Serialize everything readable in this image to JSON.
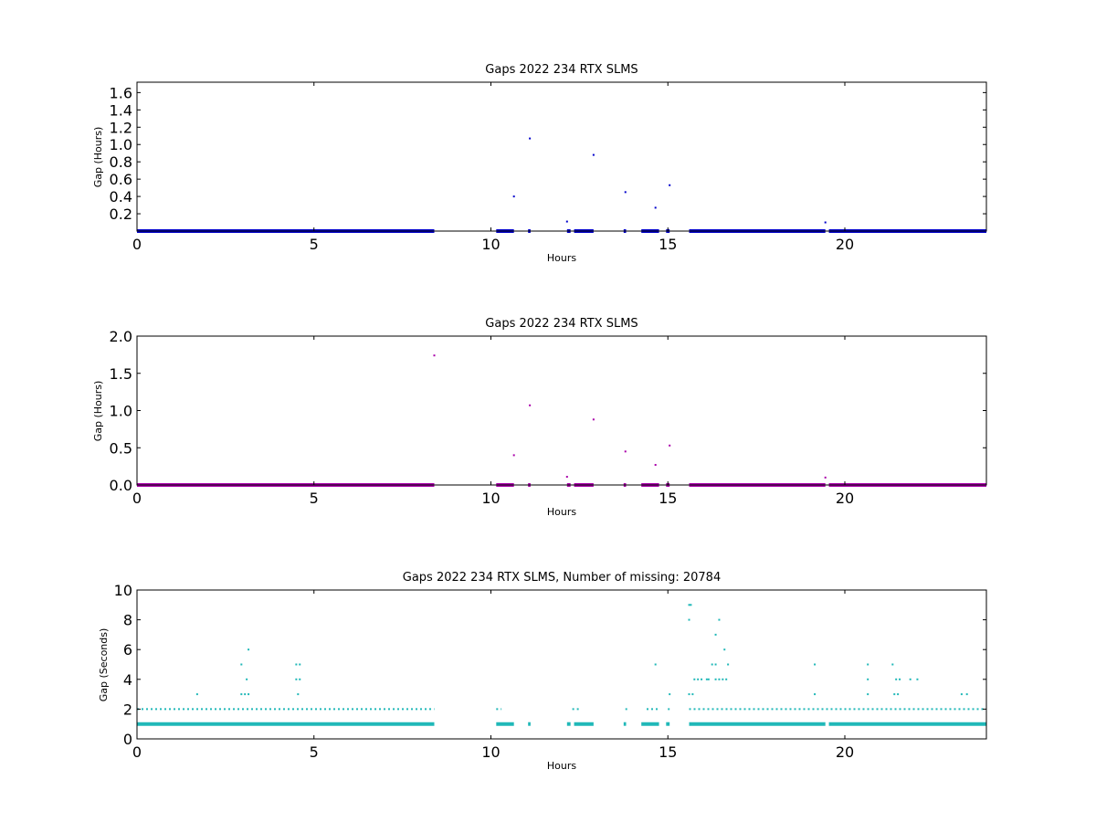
{
  "chart_data": [
    {
      "type": "scatter",
      "title": "Gaps 2022 234 RTX  SLMS",
      "xlabel": "Hours",
      "ylabel": "Gap (Hours)",
      "xlim": [
        0,
        24
      ],
      "ylim": [
        0,
        1.72
      ],
      "xticks": [
        0,
        5,
        10,
        15,
        20
      ],
      "yticks": [
        0.2,
        0.4,
        0.6,
        0.8,
        1.0,
        1.2,
        1.4,
        1.6
      ],
      "ytick_labels": [
        "0.2",
        "0.4",
        "0.6",
        "0.8",
        "1.0",
        "1.2",
        "1.4",
        "1.6"
      ],
      "grid": false,
      "marker_color": "#0000cc",
      "baseline_value": 0.0,
      "baseline_segments": [
        [
          0,
          8.4
        ],
        [
          10.15,
          10.65
        ],
        [
          11.05,
          11.12
        ],
        [
          12.15,
          12.25
        ],
        [
          12.35,
          12.9
        ],
        [
          13.75,
          13.82
        ],
        [
          14.25,
          14.75
        ],
        [
          14.95,
          15.05
        ],
        [
          15.6,
          19.45
        ],
        [
          19.55,
          24
        ]
      ],
      "points": [
        {
          "x": 10.65,
          "y": 0.4
        },
        {
          "x": 11.1,
          "y": 1.07
        },
        {
          "x": 12.15,
          "y": 0.11
        },
        {
          "x": 12.9,
          "y": 0.88
        },
        {
          "x": 13.8,
          "y": 0.45
        },
        {
          "x": 14.65,
          "y": 0.27
        },
        {
          "x": 15.05,
          "y": 0.53
        },
        {
          "x": 19.45,
          "y": 0.1
        }
      ]
    },
    {
      "type": "scatter",
      "title": "Gaps 2022 234 RTX  SLMS",
      "xlabel": "Hours",
      "ylabel": "Gap (Hours)",
      "xlim": [
        0,
        24
      ],
      "ylim": [
        0,
        2.0
      ],
      "xticks": [
        0,
        5,
        10,
        15,
        20
      ],
      "yticks": [
        0.0,
        0.5,
        1.0,
        1.5,
        2.0
      ],
      "ytick_labels": [
        "0.0",
        "0.5",
        "1.0",
        "1.5",
        "2.0"
      ],
      "grid": false,
      "marker_color": "#aa00aa",
      "baseline_value": 0.0,
      "baseline_segments": [
        [
          0,
          8.4
        ],
        [
          10.15,
          10.65
        ],
        [
          11.05,
          11.12
        ],
        [
          12.15,
          12.25
        ],
        [
          12.35,
          12.9
        ],
        [
          13.75,
          13.82
        ],
        [
          14.25,
          14.75
        ],
        [
          14.95,
          15.05
        ],
        [
          15.6,
          19.45
        ],
        [
          19.55,
          24
        ]
      ],
      "points": [
        {
          "x": 8.4,
          "y": 1.74
        },
        {
          "x": 10.65,
          "y": 0.4
        },
        {
          "x": 11.1,
          "y": 1.07
        },
        {
          "x": 12.15,
          "y": 0.11
        },
        {
          "x": 12.9,
          "y": 0.88
        },
        {
          "x": 13.8,
          "y": 0.45
        },
        {
          "x": 14.65,
          "y": 0.27
        },
        {
          "x": 15.05,
          "y": 0.53
        },
        {
          "x": 19.45,
          "y": 0.1
        }
      ]
    },
    {
      "type": "scatter",
      "title": "Gaps 2022 234 RTX  SLMS, Number of missing: 20784",
      "xlabel": "Hours",
      "ylabel": "Gap (Seconds)",
      "xlim": [
        0,
        24
      ],
      "ylim": [
        0,
        10
      ],
      "xticks": [
        0,
        5,
        10,
        15,
        20
      ],
      "yticks": [
        0,
        2,
        4,
        6,
        8,
        10
      ],
      "ytick_labels": [
        "0",
        "2",
        "4",
        "6",
        "8",
        "10"
      ],
      "grid": false,
      "marker_color": "#20b8b8",
      "baseline_value": 1,
      "baseline_segments": [
        [
          0,
          8.4
        ],
        [
          10.15,
          10.65
        ],
        [
          11.05,
          11.12
        ],
        [
          12.15,
          12.25
        ],
        [
          12.35,
          12.9
        ],
        [
          13.75,
          13.82
        ],
        [
          14.25,
          14.75
        ],
        [
          14.95,
          15.05
        ],
        [
          15.6,
          19.45
        ],
        [
          19.55,
          24
        ]
      ],
      "level_2_segments": [
        [
          0,
          8.4
        ],
        [
          10.15,
          10.3
        ],
        [
          12.3,
          12.5
        ],
        [
          13.8,
          13.85
        ],
        [
          14.4,
          14.75
        ],
        [
          15.0,
          15.05
        ],
        [
          15.6,
          24
        ]
      ],
      "points": [
        {
          "x": 1.7,
          "y": 3
        },
        {
          "x": 2.95,
          "y": 5
        },
        {
          "x": 2.95,
          "y": 3
        },
        {
          "x": 3.05,
          "y": 3
        },
        {
          "x": 3.1,
          "y": 4
        },
        {
          "x": 3.15,
          "y": 6
        },
        {
          "x": 3.15,
          "y": 3
        },
        {
          "x": 4.5,
          "y": 5
        },
        {
          "x": 4.6,
          "y": 5
        },
        {
          "x": 4.5,
          "y": 4
        },
        {
          "x": 4.6,
          "y": 4
        },
        {
          "x": 4.55,
          "y": 3
        },
        {
          "x": 14.65,
          "y": 5
        },
        {
          "x": 15.05,
          "y": 3
        },
        {
          "x": 15.6,
          "y": 9
        },
        {
          "x": 15.65,
          "y": 9
        },
        {
          "x": 15.6,
          "y": 8
        },
        {
          "x": 15.6,
          "y": 3
        },
        {
          "x": 15.7,
          "y": 3
        },
        {
          "x": 15.75,
          "y": 4
        },
        {
          "x": 15.85,
          "y": 4
        },
        {
          "x": 15.95,
          "y": 4
        },
        {
          "x": 16.1,
          "y": 4
        },
        {
          "x": 16.15,
          "y": 4
        },
        {
          "x": 16.25,
          "y": 5
        },
        {
          "x": 16.35,
          "y": 5
        },
        {
          "x": 16.35,
          "y": 7
        },
        {
          "x": 16.45,
          "y": 8
        },
        {
          "x": 16.6,
          "y": 6
        },
        {
          "x": 16.35,
          "y": 4
        },
        {
          "x": 16.45,
          "y": 4
        },
        {
          "x": 16.55,
          "y": 4
        },
        {
          "x": 16.65,
          "y": 4
        },
        {
          "x": 16.7,
          "y": 5
        },
        {
          "x": 19.15,
          "y": 5
        },
        {
          "x": 19.15,
          "y": 3
        },
        {
          "x": 20.65,
          "y": 5
        },
        {
          "x": 20.65,
          "y": 4
        },
        {
          "x": 20.65,
          "y": 3
        },
        {
          "x": 21.35,
          "y": 5
        },
        {
          "x": 21.4,
          "y": 3
        },
        {
          "x": 21.45,
          "y": 4
        },
        {
          "x": 21.55,
          "y": 4
        },
        {
          "x": 21.5,
          "y": 3
        },
        {
          "x": 21.85,
          "y": 4
        },
        {
          "x": 22.05,
          "y": 4
        },
        {
          "x": 23.3,
          "y": 3
        },
        {
          "x": 23.45,
          "y": 3
        }
      ]
    }
  ]
}
